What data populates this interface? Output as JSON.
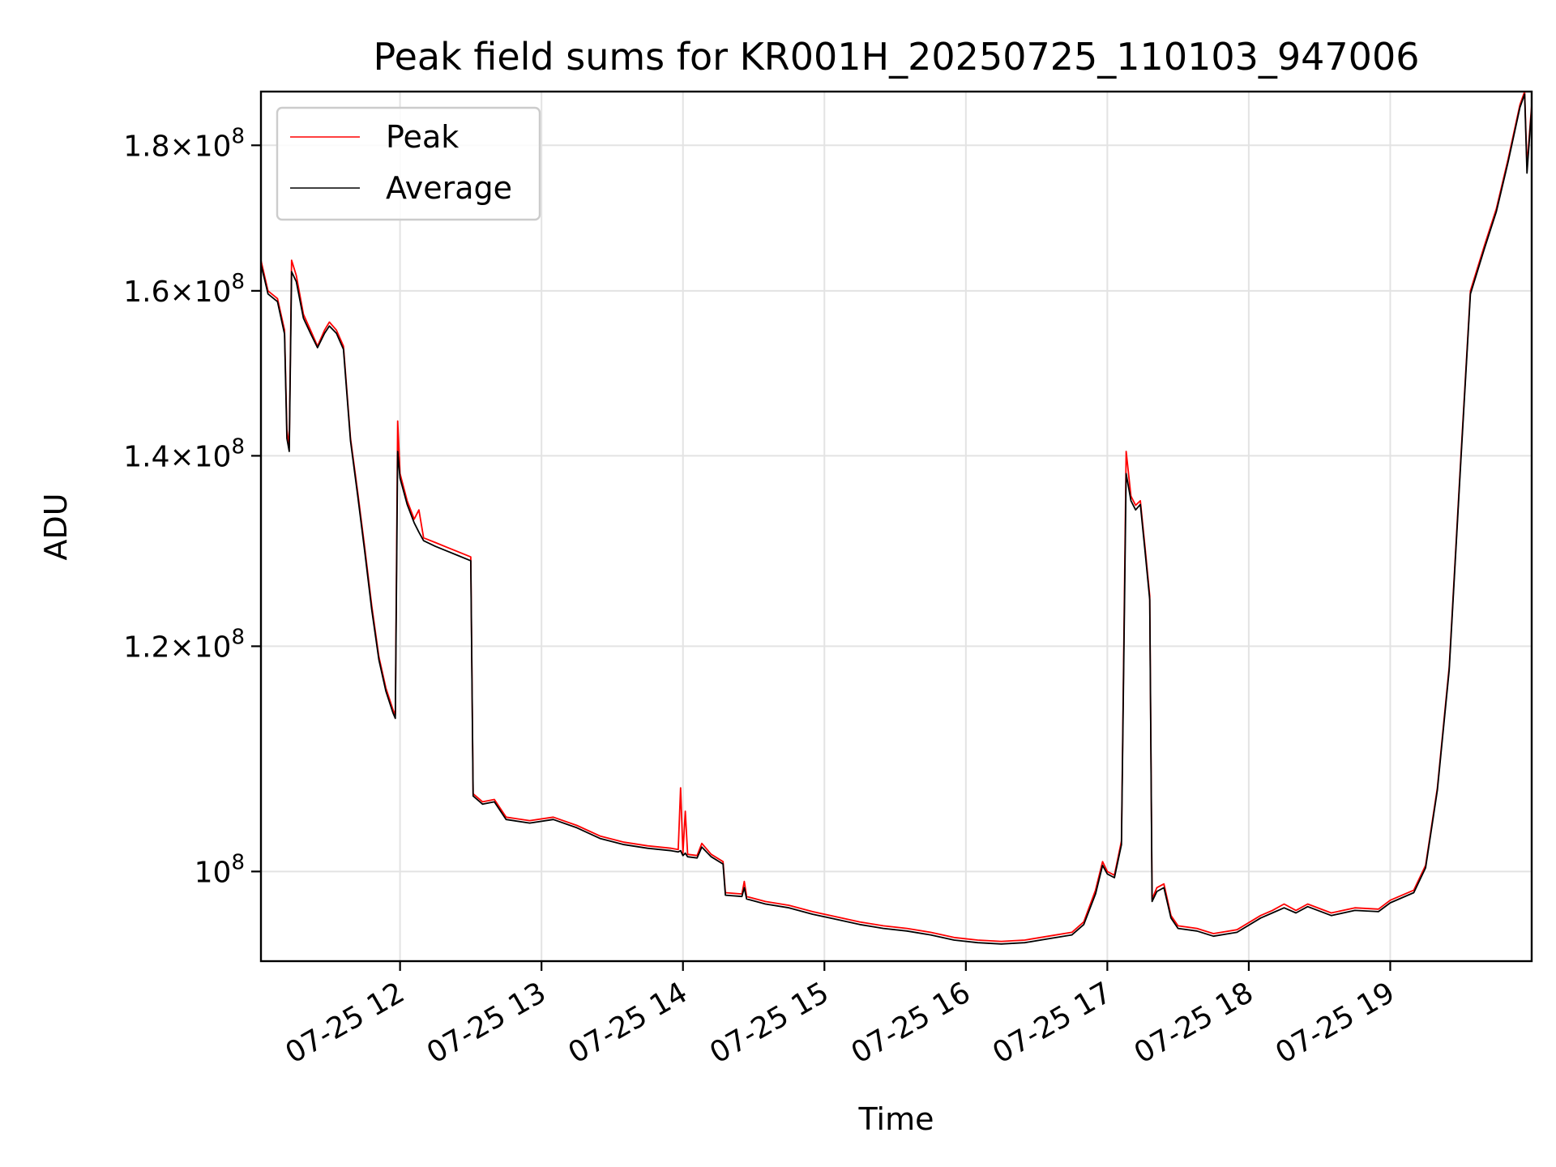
{
  "chart_data": {
    "type": "line",
    "title": "Peak field sums for KR001H_20250725_110103_947006",
    "xlabel": "Time",
    "ylabel": "ADU",
    "y_scale": "log",
    "grid": true,
    "legend_position": "top-left",
    "xlim": [
      "2025-07-25 11:01",
      "2025-07-25 20:00"
    ],
    "ylim": [
      93000000,
      188000000
    ],
    "x_ticks": [
      {
        "value": "2025-07-25 12:00",
        "label": "07-25 12"
      },
      {
        "value": "2025-07-25 13:00",
        "label": "07-25 13"
      },
      {
        "value": "2025-07-25 14:00",
        "label": "07-25 14"
      },
      {
        "value": "2025-07-25 15:00",
        "label": "07-25 15"
      },
      {
        "value": "2025-07-25 16:00",
        "label": "07-25 16"
      },
      {
        "value": "2025-07-25 17:00",
        "label": "07-25 17"
      },
      {
        "value": "2025-07-25 18:00",
        "label": "07-25 18"
      },
      {
        "value": "2025-07-25 19:00",
        "label": "07-25 19"
      }
    ],
    "y_ticks": [
      {
        "value": 100000000,
        "mantissa": "",
        "base": "10",
        "exp": "8"
      },
      {
        "value": 120000000,
        "mantissa": "1.2×",
        "base": "10",
        "exp": "8"
      },
      {
        "value": 140000000,
        "mantissa": "1.4×",
        "base": "10",
        "exp": "8"
      },
      {
        "value": 160000000,
        "mantissa": "1.6×",
        "base": "10",
        "exp": "8"
      },
      {
        "value": 180000000,
        "mantissa": "1.8×",
        "base": "10",
        "exp": "8"
      }
    ],
    "series": [
      {
        "name": "Peak",
        "color": "#ff0000",
        "points": [
          [
            "2025-07-25 11:01",
            164000000
          ],
          [
            "2025-07-25 11:04",
            160000000
          ],
          [
            "2025-07-25 11:08",
            159000000
          ],
          [
            "2025-07-25 11:11",
            155000000
          ],
          [
            "2025-07-25 11:12",
            143000000
          ],
          [
            "2025-07-25 11:13",
            141000000
          ],
          [
            "2025-07-25 11:14",
            164000000
          ],
          [
            "2025-07-25 11:16",
            162000000
          ],
          [
            "2025-07-25 11:19",
            157000000
          ],
          [
            "2025-07-25 11:22",
            155000000
          ],
          [
            "2025-07-25 11:25",
            153000000
          ],
          [
            "2025-07-25 11:28",
            155000000
          ],
          [
            "2025-07-25 11:30",
            156000000
          ],
          [
            "2025-07-25 11:33",
            155000000
          ],
          [
            "2025-07-25 11:36",
            153000000
          ],
          [
            "2025-07-25 11:39",
            142000000
          ],
          [
            "2025-07-25 11:42",
            136000000
          ],
          [
            "2025-07-25 11:45",
            130000000
          ],
          [
            "2025-07-25 11:48",
            124000000
          ],
          [
            "2025-07-25 11:51",
            119000000
          ],
          [
            "2025-07-25 11:54",
            116000000
          ],
          [
            "2025-07-25 11:57",
            114000000
          ],
          [
            "2025-07-25 11:58",
            113500000
          ],
          [
            "2025-07-25 11:59",
            144000000
          ],
          [
            "2025-07-25 12:00",
            138000000
          ],
          [
            "2025-07-25 12:03",
            135000000
          ],
          [
            "2025-07-25 12:06",
            133000000
          ],
          [
            "2025-07-25 12:08",
            134000000
          ],
          [
            "2025-07-25 12:10",
            131000000
          ],
          [
            "2025-07-25 12:15",
            130500000
          ],
          [
            "2025-07-25 12:20",
            130000000
          ],
          [
            "2025-07-25 12:25",
            129500000
          ],
          [
            "2025-07-25 12:30",
            129000000
          ],
          [
            "2025-07-25 12:31",
            106500000
          ],
          [
            "2025-07-25 12:35",
            105800000
          ],
          [
            "2025-07-25 12:40",
            106000000
          ],
          [
            "2025-07-25 12:45",
            104500000
          ],
          [
            "2025-07-25 12:55",
            104200000
          ],
          [
            "2025-07-25 13:05",
            104500000
          ],
          [
            "2025-07-25 13:15",
            103800000
          ],
          [
            "2025-07-25 13:25",
            102900000
          ],
          [
            "2025-07-25 13:35",
            102400000
          ],
          [
            "2025-07-25 13:45",
            102100000
          ],
          [
            "2025-07-25 13:55",
            101900000
          ],
          [
            "2025-07-25 13:58",
            101800000
          ],
          [
            "2025-07-25 13:59",
            107000000
          ],
          [
            "2025-07-25 14:00",
            101500000
          ],
          [
            "2025-07-25 14:01",
            105000000
          ],
          [
            "2025-07-25 14:02",
            101400000
          ],
          [
            "2025-07-25 14:06",
            101300000
          ],
          [
            "2025-07-25 14:08",
            102300000
          ],
          [
            "2025-07-25 14:12",
            101400000
          ],
          [
            "2025-07-25 14:17",
            100800000
          ],
          [
            "2025-07-25 14:18",
            98300000
          ],
          [
            "2025-07-25 14:25",
            98200000
          ],
          [
            "2025-07-25 14:26",
            99200000
          ],
          [
            "2025-07-25 14:27",
            98000000
          ],
          [
            "2025-07-25 14:35",
            97600000
          ],
          [
            "2025-07-25 14:45",
            97300000
          ],
          [
            "2025-07-25 14:55",
            96800000
          ],
          [
            "2025-07-25 15:05",
            96400000
          ],
          [
            "2025-07-25 15:15",
            96000000
          ],
          [
            "2025-07-25 15:25",
            95700000
          ],
          [
            "2025-07-25 15:35",
            95500000
          ],
          [
            "2025-07-25 15:45",
            95200000
          ],
          [
            "2025-07-25 15:55",
            94800000
          ],
          [
            "2025-07-25 16:05",
            94600000
          ],
          [
            "2025-07-25 16:15",
            94500000
          ],
          [
            "2025-07-25 16:25",
            94600000
          ],
          [
            "2025-07-25 16:35",
            94900000
          ],
          [
            "2025-07-25 16:45",
            95200000
          ],
          [
            "2025-07-25 16:50",
            96000000
          ],
          [
            "2025-07-25 16:55",
            98500000
          ],
          [
            "2025-07-25 16:58",
            100800000
          ],
          [
            "2025-07-25 17:00",
            100000000
          ],
          [
            "2025-07-25 17:03",
            99700000
          ],
          [
            "2025-07-25 17:06",
            102500000
          ],
          [
            "2025-07-25 17:08",
            140500000
          ],
          [
            "2025-07-25 17:10",
            135500000
          ],
          [
            "2025-07-25 17:12",
            134500000
          ],
          [
            "2025-07-25 17:14",
            135000000
          ],
          [
            "2025-07-25 17:16",
            130000000
          ],
          [
            "2025-07-25 17:18",
            125000000
          ],
          [
            "2025-07-25 17:19",
            97800000
          ],
          [
            "2025-07-25 17:21",
            98700000
          ],
          [
            "2025-07-25 17:24",
            99000000
          ],
          [
            "2025-07-25 17:27",
            96500000
          ],
          [
            "2025-07-25 17:30",
            95700000
          ],
          [
            "2025-07-25 17:38",
            95500000
          ],
          [
            "2025-07-25 17:45",
            95100000
          ],
          [
            "2025-07-25 17:55",
            95400000
          ],
          [
            "2025-07-25 18:05",
            96500000
          ],
          [
            "2025-07-25 18:10",
            96900000
          ],
          [
            "2025-07-25 18:15",
            97400000
          ],
          [
            "2025-07-25 18:20",
            96900000
          ],
          [
            "2025-07-25 18:25",
            97400000
          ],
          [
            "2025-07-25 18:35",
            96700000
          ],
          [
            "2025-07-25 18:45",
            97100000
          ],
          [
            "2025-07-25 18:55",
            97000000
          ],
          [
            "2025-07-25 19:00",
            97700000
          ],
          [
            "2025-07-25 19:10",
            98500000
          ],
          [
            "2025-07-25 19:15",
            100500000
          ],
          [
            "2025-07-25 19:20",
            107000000
          ],
          [
            "2025-07-25 19:25",
            118000000
          ],
          [
            "2025-07-25 19:30",
            140000000
          ],
          [
            "2025-07-25 19:34",
            160000000
          ],
          [
            "2025-07-25 19:40",
            166000000
          ],
          [
            "2025-07-25 19:45",
            171000000
          ],
          [
            "2025-07-25 19:50",
            178000000
          ],
          [
            "2025-07-25 19:55",
            186000000
          ],
          [
            "2025-07-25 19:57",
            188000000
          ],
          [
            "2025-07-25 19:58",
            177000000
          ],
          [
            "2025-07-25 20:00",
            186000000
          ]
        ]
      },
      {
        "name": "Average",
        "color": "#000000",
        "points": [
          [
            "2025-07-25 11:01",
            163500000
          ],
          [
            "2025-07-25 11:04",
            159600000
          ],
          [
            "2025-07-25 11:08",
            158600000
          ],
          [
            "2025-07-25 11:11",
            154500000
          ],
          [
            "2025-07-25 11:12",
            142000000
          ],
          [
            "2025-07-25 11:13",
            140500000
          ],
          [
            "2025-07-25 11:14",
            162500000
          ],
          [
            "2025-07-25 11:16",
            161200000
          ],
          [
            "2025-07-25 11:19",
            156500000
          ],
          [
            "2025-07-25 11:22",
            154600000
          ],
          [
            "2025-07-25 11:25",
            152800000
          ],
          [
            "2025-07-25 11:28",
            154600000
          ],
          [
            "2025-07-25 11:30",
            155500000
          ],
          [
            "2025-07-25 11:33",
            154600000
          ],
          [
            "2025-07-25 11:36",
            152600000
          ],
          [
            "2025-07-25 11:39",
            141700000
          ],
          [
            "2025-07-25 11:42",
            135600000
          ],
          [
            "2025-07-25 11:45",
            129600000
          ],
          [
            "2025-07-25 11:48",
            123600000
          ],
          [
            "2025-07-25 11:51",
            118700000
          ],
          [
            "2025-07-25 11:54",
            115700000
          ],
          [
            "2025-07-25 11:57",
            113700000
          ],
          [
            "2025-07-25 11:58",
            113200000
          ],
          [
            "2025-07-25 11:59",
            140500000
          ],
          [
            "2025-07-25 12:00",
            137500000
          ],
          [
            "2025-07-25 12:03",
            134600000
          ],
          [
            "2025-07-25 12:06",
            132600000
          ],
          [
            "2025-07-25 12:08",
            131600000
          ],
          [
            "2025-07-25 12:10",
            130700000
          ],
          [
            "2025-07-25 12:15",
            130100000
          ],
          [
            "2025-07-25 12:20",
            129600000
          ],
          [
            "2025-07-25 12:25",
            129100000
          ],
          [
            "2025-07-25 12:30",
            128600000
          ],
          [
            "2025-07-25 12:31",
            106300000
          ],
          [
            "2025-07-25 12:35",
            105600000
          ],
          [
            "2025-07-25 12:40",
            105800000
          ],
          [
            "2025-07-25 12:45",
            104300000
          ],
          [
            "2025-07-25 12:55",
            104000000
          ],
          [
            "2025-07-25 13:05",
            104300000
          ],
          [
            "2025-07-25 13:15",
            103600000
          ],
          [
            "2025-07-25 13:25",
            102700000
          ],
          [
            "2025-07-25 13:35",
            102200000
          ],
          [
            "2025-07-25 13:45",
            101900000
          ],
          [
            "2025-07-25 13:55",
            101700000
          ],
          [
            "2025-07-25 13:58",
            101600000
          ],
          [
            "2025-07-25 13:59",
            101700000
          ],
          [
            "2025-07-25 14:00",
            101300000
          ],
          [
            "2025-07-25 14:01",
            101500000
          ],
          [
            "2025-07-25 14:02",
            101200000
          ],
          [
            "2025-07-25 14:06",
            101100000
          ],
          [
            "2025-07-25 14:08",
            102000000
          ],
          [
            "2025-07-25 14:12",
            101200000
          ],
          [
            "2025-07-25 14:17",
            100600000
          ],
          [
            "2025-07-25 14:18",
            98100000
          ],
          [
            "2025-07-25 14:25",
            98000000
          ],
          [
            "2025-07-25 14:26",
            98700000
          ],
          [
            "2025-07-25 14:27",
            97800000
          ],
          [
            "2025-07-25 14:35",
            97400000
          ],
          [
            "2025-07-25 14:45",
            97100000
          ],
          [
            "2025-07-25 14:55",
            96600000
          ],
          [
            "2025-07-25 15:05",
            96200000
          ],
          [
            "2025-07-25 15:15",
            95800000
          ],
          [
            "2025-07-25 15:25",
            95500000
          ],
          [
            "2025-07-25 15:35",
            95300000
          ],
          [
            "2025-07-25 15:45",
            95000000
          ],
          [
            "2025-07-25 15:55",
            94600000
          ],
          [
            "2025-07-25 16:05",
            94400000
          ],
          [
            "2025-07-25 16:15",
            94300000
          ],
          [
            "2025-07-25 16:25",
            94400000
          ],
          [
            "2025-07-25 16:35",
            94700000
          ],
          [
            "2025-07-25 16:45",
            95000000
          ],
          [
            "2025-07-25 16:50",
            95800000
          ],
          [
            "2025-07-25 16:55",
            98200000
          ],
          [
            "2025-07-25 16:58",
            100500000
          ],
          [
            "2025-07-25 17:00",
            99800000
          ],
          [
            "2025-07-25 17:03",
            99500000
          ],
          [
            "2025-07-25 17:06",
            102200000
          ],
          [
            "2025-07-25 17:08",
            138000000
          ],
          [
            "2025-07-25 17:10",
            135000000
          ],
          [
            "2025-07-25 17:12",
            134000000
          ],
          [
            "2025-07-25 17:14",
            134600000
          ],
          [
            "2025-07-25 17:16",
            129600000
          ],
          [
            "2025-07-25 17:18",
            124600000
          ],
          [
            "2025-07-25 17:19",
            97600000
          ],
          [
            "2025-07-25 17:21",
            98400000
          ],
          [
            "2025-07-25 17:24",
            98700000
          ],
          [
            "2025-07-25 17:27",
            96300000
          ],
          [
            "2025-07-25 17:30",
            95500000
          ],
          [
            "2025-07-25 17:38",
            95300000
          ],
          [
            "2025-07-25 17:45",
            94900000
          ],
          [
            "2025-07-25 17:55",
            95200000
          ],
          [
            "2025-07-25 18:05",
            96300000
          ],
          [
            "2025-07-25 18:10",
            96700000
          ],
          [
            "2025-07-25 18:15",
            97100000
          ],
          [
            "2025-07-25 18:20",
            96700000
          ],
          [
            "2025-07-25 18:25",
            97200000
          ],
          [
            "2025-07-25 18:35",
            96500000
          ],
          [
            "2025-07-25 18:45",
            96900000
          ],
          [
            "2025-07-25 18:55",
            96800000
          ],
          [
            "2025-07-25 19:00",
            97500000
          ],
          [
            "2025-07-25 19:10",
            98300000
          ],
          [
            "2025-07-25 19:15",
            100300000
          ],
          [
            "2025-07-25 19:20",
            106800000
          ],
          [
            "2025-07-25 19:25",
            117700000
          ],
          [
            "2025-07-25 19:30",
            139600000
          ],
          [
            "2025-07-25 19:34",
            159600000
          ],
          [
            "2025-07-25 19:40",
            165600000
          ],
          [
            "2025-07-25 19:45",
            170600000
          ],
          [
            "2025-07-25 19:50",
            177600000
          ],
          [
            "2025-07-25 19:55",
            185600000
          ],
          [
            "2025-07-25 19:57",
            187600000
          ],
          [
            "2025-07-25 19:58",
            176000000
          ],
          [
            "2025-07-25 20:00",
            185600000
          ]
        ]
      }
    ]
  }
}
